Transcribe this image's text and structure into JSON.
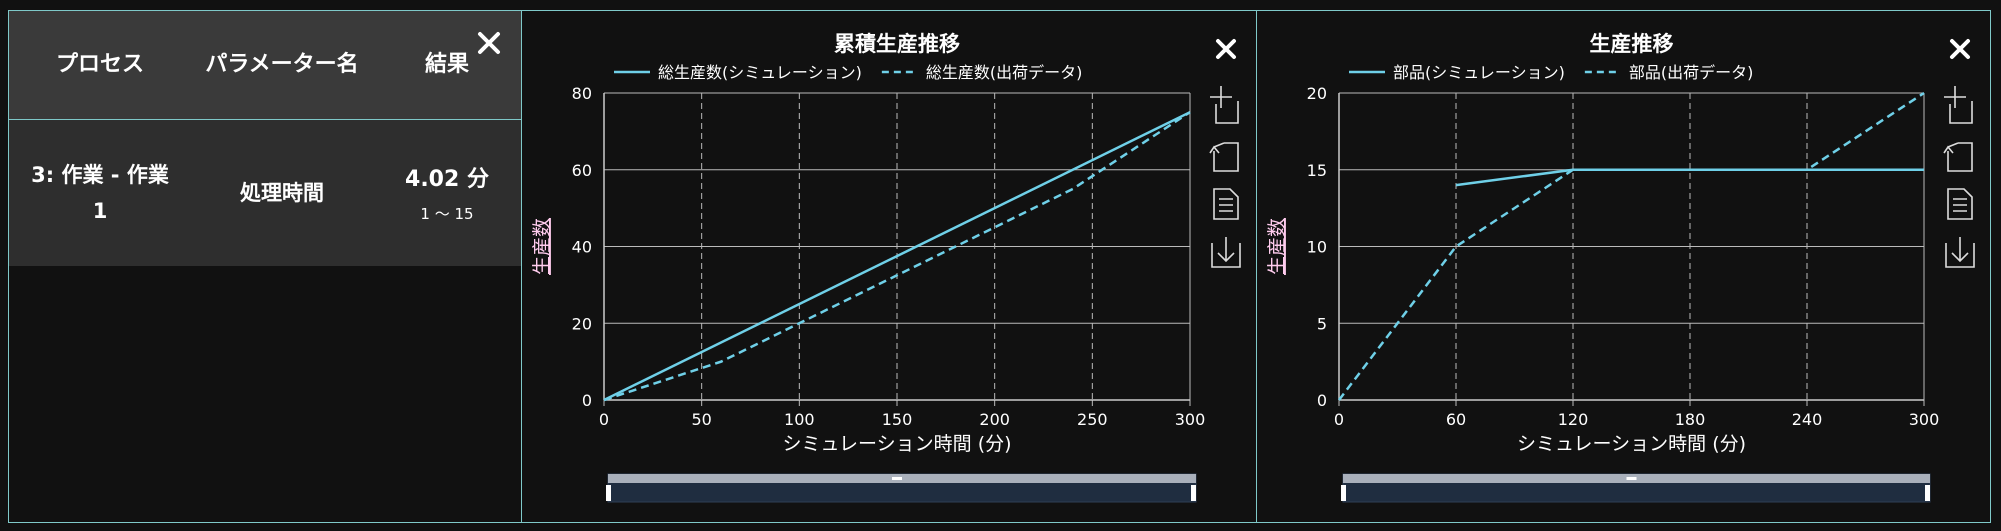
{
  "table": {
    "headers": [
      "プロセス",
      "パラメーター名",
      "結果"
    ],
    "rows": [
      {
        "process": "3: 作業 - 作業1",
        "parameter": "処理時間",
        "result": "4.02 分",
        "range": "1 ～ 15"
      }
    ]
  },
  "colors": {
    "accent": "#7fc9c9",
    "series": "#6fd0e8",
    "background": "#111111",
    "ylabel": "#ffccee"
  },
  "toolbox_icons": [
    "zoom-icon",
    "zoom-reset-icon",
    "data-view-icon",
    "save-image-icon"
  ],
  "chart_data": [
    {
      "type": "line",
      "title": "累積生産推移",
      "xlabel": "シミュレーション時間 (分)",
      "ylabel": "生産数",
      "xlim": [
        0,
        300
      ],
      "ylim": [
        0,
        80
      ],
      "xticks": [
        0,
        50,
        100,
        150,
        200,
        250,
        300
      ],
      "yticks": [
        0,
        20,
        40,
        60,
        80
      ],
      "grid": "x-dashed, y-solid",
      "legend": "top-center",
      "series": [
        {
          "name": "総生産数(シミュレーション)",
          "style": "solid",
          "x": [
            0,
            300
          ],
          "y": [
            0,
            75
          ]
        },
        {
          "name": "総生産数(出荷データ)",
          "style": "dashed",
          "x": [
            0,
            60,
            120,
            180,
            240,
            300
          ],
          "y": [
            0,
            10,
            25,
            40,
            55,
            75
          ]
        }
      ]
    },
    {
      "type": "line",
      "title": "生産推移",
      "xlabel": "シミュレーション時間 (分)",
      "ylabel": "生産数",
      "xlim": [
        0,
        300
      ],
      "ylim": [
        0,
        20
      ],
      "xticks": [
        0,
        60,
        120,
        180,
        240,
        300
      ],
      "yticks": [
        0,
        5,
        10,
        15,
        20
      ],
      "grid": "x-dashed, y-solid",
      "legend": "top-center",
      "series": [
        {
          "name": "部品(シミュレーション)",
          "style": "solid",
          "x": [
            60,
            120,
            180,
            240,
            300
          ],
          "y": [
            14,
            15,
            15,
            15,
            15
          ]
        },
        {
          "name": "部品(出荷データ)",
          "style": "dashed",
          "x": [
            0,
            60,
            120,
            180,
            240,
            300
          ],
          "y": [
            0,
            10,
            15,
            15,
            15,
            20
          ]
        }
      ]
    }
  ]
}
